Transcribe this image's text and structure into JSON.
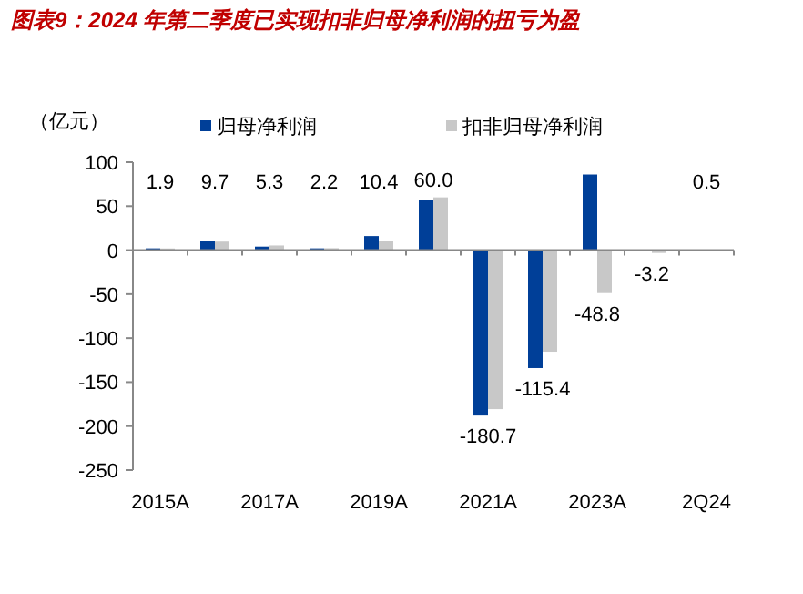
{
  "chart_data": {
    "type": "bar",
    "title": "图表9：2024 年第二季度已实现扣非归母净利润的扭亏为盈",
    "ylabel": "（亿元）",
    "categories": [
      "2015A",
      null,
      "2017A",
      null,
      "2019A",
      null,
      "2021A",
      null,
      "2023A",
      null,
      "2Q24"
    ],
    "series": [
      {
        "name": "归母净利润",
        "color": "#003f98",
        "values": [
          2,
          10,
          4,
          2,
          16,
          57,
          -188,
          -134,
          86,
          null,
          0
        ]
      },
      {
        "name": "扣非归母净利润",
        "color": "#c8c8c8",
        "values": [
          1.9,
          9.7,
          5.3,
          2.2,
          10.4,
          60.0,
          -180.7,
          -115.4,
          -48.8,
          -3.2,
          0.5
        ],
        "value_labels": [
          "1.9",
          "9.7",
          "5.3",
          "2.2",
          "10.4",
          "60.0",
          "-180.7",
          "-115.4",
          "-48.8",
          "-3.2",
          "0.5"
        ]
      }
    ],
    "ylim": [
      -250,
      100
    ],
    "yticks": [
      -250,
      -200,
      -150,
      -100,
      -50,
      0,
      50,
      100
    ],
    "legend": "top"
  }
}
